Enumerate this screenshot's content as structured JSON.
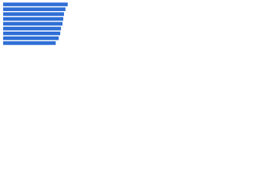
{
  "chart_data": {
    "type": "bar",
    "orientation": "horizontal",
    "categories": [
      null,
      null,
      null,
      null,
      null,
      null,
      null,
      null,
      null
    ],
    "values": [
      86,
      83,
      81,
      80,
      79,
      77,
      76,
      74,
      70
    ],
    "color": "#2f6fd6",
    "xlim": [
      0,
      100
    ]
  }
}
